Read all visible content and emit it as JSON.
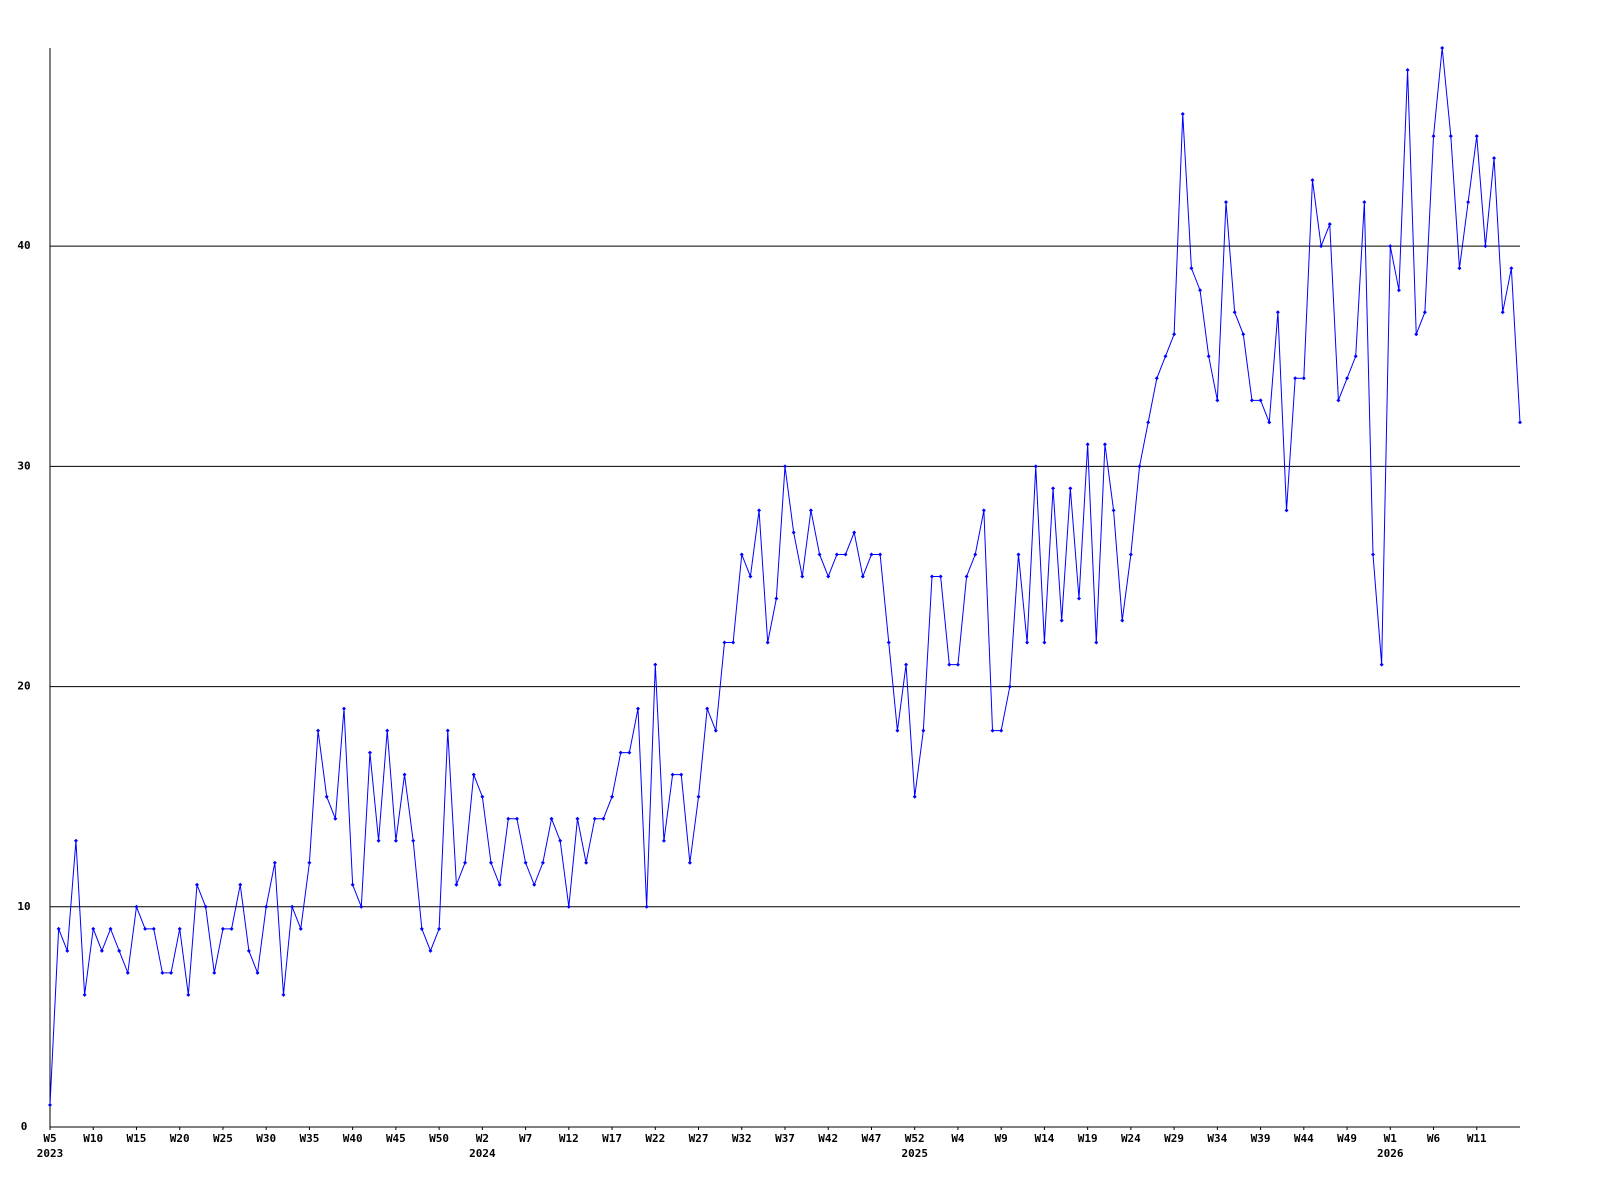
{
  "chart_data": {
    "type": "line",
    "color": "#0000ff",
    "grid": true,
    "ylim": [
      0,
      49
    ],
    "yticks": [
      0,
      10,
      20,
      30,
      40
    ],
    "categories": [
      "W5",
      null,
      null,
      null,
      null,
      "W10",
      null,
      null,
      null,
      null,
      "W15",
      null,
      null,
      null,
      null,
      "W20",
      null,
      null,
      null,
      null,
      "W25",
      null,
      null,
      null,
      null,
      "W30",
      null,
      null,
      null,
      null,
      "W35",
      null,
      null,
      null,
      null,
      "W40",
      null,
      null,
      null,
      null,
      "W45",
      null,
      null,
      null,
      null,
      "W50",
      null,
      null,
      null,
      null,
      "W2",
      null,
      null,
      null,
      null,
      "W7",
      null,
      null,
      null,
      null,
      "W12",
      null,
      null,
      null,
      null,
      "W17",
      null,
      null,
      null,
      null,
      "W22",
      null,
      null,
      null,
      null,
      "W27",
      null,
      null,
      null,
      null,
      "W32",
      null,
      null,
      null,
      null,
      "W37",
      null,
      null,
      null,
      null,
      "W42",
      null,
      null,
      null,
      null,
      "W47",
      null,
      null,
      null,
      null,
      "W52",
      null,
      null,
      null,
      null,
      "W4",
      null,
      null,
      null,
      null,
      "W9",
      null,
      null,
      null,
      null,
      "W14",
      null,
      null,
      null,
      null,
      "W19",
      null,
      null,
      null,
      null,
      "W24",
      null,
      null,
      null,
      null,
      "W29",
      null,
      null,
      null,
      null,
      "W34",
      null,
      null,
      null,
      null,
      "W39",
      null,
      null,
      null,
      null,
      "W44",
      null,
      null,
      null,
      null,
      "W49",
      null,
      null,
      null,
      null,
      "W1",
      null,
      null,
      null,
      null,
      "W6",
      null,
      null,
      null,
      null,
      "W11",
      null,
      null,
      null,
      null,
      null
    ],
    "category_years": [
      "2023",
      null,
      null,
      null,
      null,
      null,
      null,
      null,
      null,
      null,
      null,
      null,
      null,
      null,
      null,
      null,
      null,
      null,
      null,
      null,
      null,
      null,
      null,
      null,
      null,
      null,
      null,
      null,
      null,
      null,
      null,
      null,
      null,
      null,
      null,
      null,
      null,
      null,
      null,
      null,
      null,
      null,
      null,
      null,
      null,
      null,
      null,
      null,
      null,
      null,
      "2024",
      null,
      null,
      null,
      null,
      null,
      null,
      null,
      null,
      null,
      null,
      null,
      null,
      null,
      null,
      null,
      null,
      null,
      null,
      null,
      null,
      null,
      null,
      null,
      null,
      null,
      null,
      null,
      null,
      null,
      null,
      null,
      null,
      null,
      null,
      null,
      null,
      null,
      null,
      null,
      null,
      null,
      null,
      null,
      null,
      null,
      null,
      null,
      null,
      null,
      "2025",
      null,
      null,
      null,
      null,
      null,
      null,
      null,
      null,
      null,
      null,
      null,
      null,
      null,
      null,
      null,
      null,
      null,
      null,
      null,
      null,
      null,
      null,
      null,
      null,
      null,
      null,
      null,
      null,
      null,
      null,
      null,
      null,
      null,
      null,
      null,
      null,
      null,
      null,
      null,
      null,
      null,
      null,
      null,
      null,
      null,
      null,
      null,
      null,
      null,
      null,
      null,
      null,
      null,
      null,
      "2026",
      null,
      null,
      null,
      null,
      null,
      null,
      null,
      null,
      null,
      null,
      null,
      null,
      null,
      null,
      null
    ],
    "values": [
      1,
      9,
      8,
      13,
      6,
      9,
      8,
      9,
      8,
      7,
      10,
      9,
      9,
      7,
      7,
      9,
      6,
      11,
      10,
      7,
      9,
      9,
      11,
      8,
      7,
      10,
      12,
      6,
      10,
      9,
      12,
      18,
      15,
      14,
      19,
      11,
      10,
      17,
      13,
      18,
      13,
      16,
      13,
      9,
      8,
      9,
      18,
      11,
      12,
      16,
      15,
      12,
      11,
      14,
      14,
      12,
      11,
      12,
      14,
      13,
      10,
      14,
      12,
      14,
      14,
      15,
      17,
      17,
      19,
      10,
      21,
      13,
      16,
      16,
      12,
      15,
      19,
      18,
      22,
      22,
      26,
      25,
      28,
      22,
      24,
      30,
      27,
      25,
      28,
      26,
      25,
      26,
      26,
      27,
      25,
      26,
      26,
      22,
      18,
      21,
      15,
      18,
      25,
      25,
      21,
      21,
      25,
      26,
      28,
      18,
      18,
      20,
      26,
      22,
      30,
      22,
      29,
      23,
      29,
      24,
      31,
      22,
      31,
      28,
      23,
      26,
      30,
      32,
      34,
      35,
      36,
      46,
      39,
      38,
      35,
      33,
      42,
      37,
      36,
      33,
      33,
      32,
      37,
      28,
      34,
      34,
      43,
      40,
      41,
      33,
      34,
      35,
      42,
      26,
      21,
      40,
      38,
      48,
      36,
      37,
      45,
      49,
      45,
      39,
      42,
      45,
      40,
      44,
      37,
      39,
      32
    ]
  }
}
